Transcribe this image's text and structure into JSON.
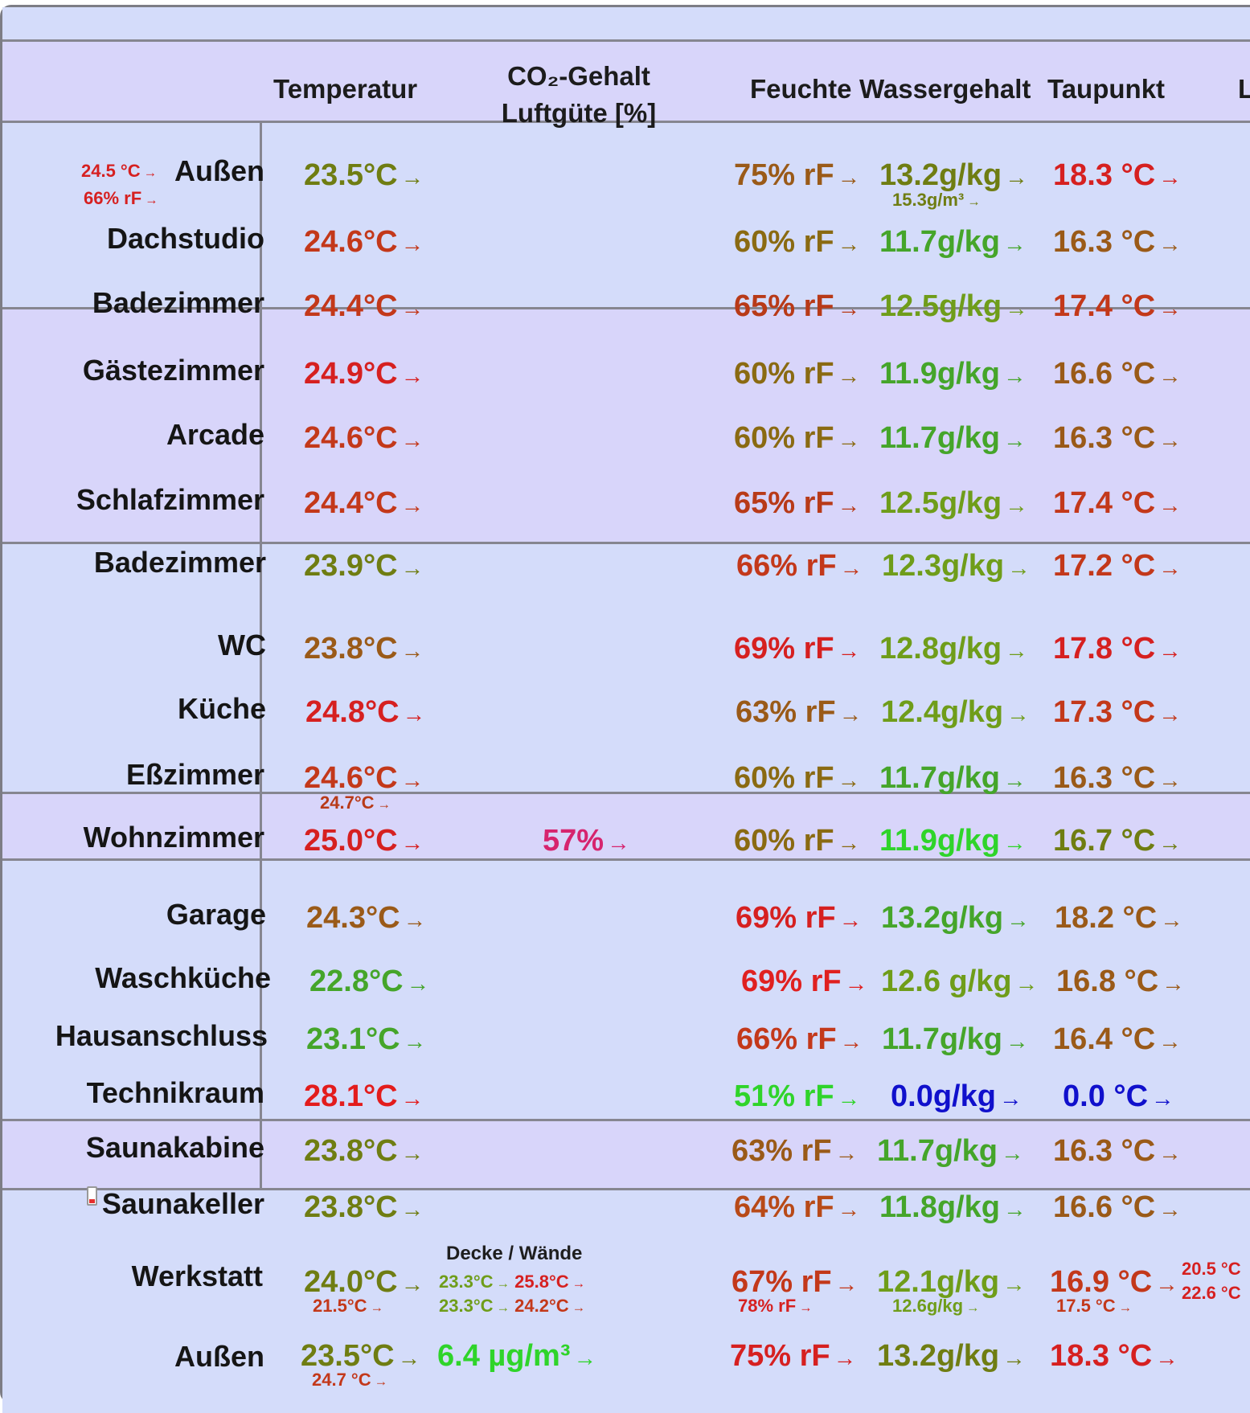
{
  "header": {
    "temperature": "Temperatur",
    "co2_line1": "CO₂-Gehalt",
    "co2_line2": "Luftgüte [%]",
    "humidity": "Feuchte",
    "water_content": "Wassergehalt",
    "dew_point": "Taupunkt",
    "cut_column": "L"
  },
  "rows": [
    {
      "room": "Außen",
      "temp": "23.5°C",
      "hum": "75% rF",
      "water": "13.2g/kg",
      "dew": "18.3 °C",
      "extra_temp": "24.5 °C",
      "extra_hum": "66% rF",
      "water_sub": "15.3g/m³"
    },
    {
      "room": "Dachstudio",
      "temp": "24.6°C",
      "hum": "60% rF",
      "water": "11.7g/kg",
      "dew": "16.3 °C"
    },
    {
      "room": "Badezimmer",
      "temp": "24.4°C",
      "hum": "65% rF",
      "water": "12.5g/kg",
      "dew": "17.4 °C"
    },
    {
      "room": "Gästezimmer",
      "temp": "24.9°C",
      "hum": "60% rF",
      "water": "11.9g/kg",
      "dew": "16.6 °C"
    },
    {
      "room": "Arcade",
      "temp": "24.6°C",
      "hum": "60% rF",
      "water": "11.7g/kg",
      "dew": "16.3 °C"
    },
    {
      "room": "Schlafzimmer",
      "temp": "24.4°C",
      "hum": "65% rF",
      "water": "12.5g/kg",
      "dew": "17.4 °C"
    },
    {
      "room": "Badezimmer",
      "temp": "23.9°C",
      "hum": "66% rF",
      "water": "12.3g/kg",
      "dew": "17.2 °C"
    },
    {
      "room": "WC",
      "temp": "23.8°C",
      "hum": "69% rF",
      "water": "12.8g/kg",
      "dew": "17.8 °C"
    },
    {
      "room": "Küche",
      "temp": "24.8°C",
      "hum": "63% rF",
      "water": "12.4g/kg",
      "dew": "17.3 °C"
    },
    {
      "room": "Eßzimmer",
      "temp": "24.6°C",
      "hum": "60% rF",
      "water": "11.7g/kg",
      "dew": "16.3 °C",
      "temp_sub": "24.7°C"
    },
    {
      "room": "Wohnzimmer",
      "temp": "25.0°C",
      "co2": "57%",
      "hum": "60% rF",
      "water": "11.9g/kg",
      "dew": "16.7 °C"
    },
    {
      "room": "Garage",
      "temp": "24.3°C",
      "hum": "69% rF",
      "water": "13.2g/kg",
      "dew": "18.2 °C"
    },
    {
      "room": "Waschküche",
      "temp": "22.8°C",
      "hum": "69% rF",
      "water": "12.6 g/kg",
      "dew": "16.8 °C"
    },
    {
      "room": "Hausanschluss",
      "temp": "23.1°C",
      "hum": "66% rF",
      "water": "11.7g/kg",
      "dew": "16.4 °C"
    },
    {
      "room": "Technikraum",
      "temp": "28.1°C",
      "hum": "51% rF",
      "water": "0.0g/kg",
      "dew": "0.0 °C"
    },
    {
      "room": "Saunakabine",
      "temp": "23.8°C",
      "hum": "63% rF",
      "water": "11.7g/kg",
      "dew": "16.3 °C"
    },
    {
      "room": "Saunakeller",
      "temp": "23.8°C",
      "hum": "64% rF",
      "water": "11.8g/kg",
      "dew": "16.6 °C"
    },
    {
      "room": "Werkstatt",
      "temp": "24.0°C",
      "hum": "67% rF",
      "water": "12.1g/kg",
      "dew": "16.9 °C",
      "temp_sub": "21.5°C",
      "hum_sub": "78% rF",
      "water_sub": "12.6g/kg",
      "dew_sub": "17.5 °C",
      "walls_title": "Decke / Wände",
      "walls_row1_a": "23.3°C",
      "walls_row1_b": "25.8°C",
      "walls_row2_a": "23.3°C",
      "walls_row2_b": "24.2°C",
      "right_1": "20.5 °C",
      "right_2": "22.6 °C"
    },
    {
      "room": "Außen",
      "temp": "23.5°C",
      "pm": "6.4 µg/m³",
      "hum": "75% rF",
      "water": "13.2g/kg",
      "dew": "18.3 °C",
      "temp_sub": "24.7 °C"
    }
  ],
  "arrow": "→",
  "icons": {
    "battery": "battery-low-icon"
  },
  "colors": {
    "red": "#d62020",
    "orange_red": "#c3381a",
    "brown": "#9a5a18",
    "olive": "#6f7d12",
    "green": "#45a52a",
    "bright_green": "#2fd42a",
    "blue": "#1010cc",
    "magenta": "#d6246e",
    "panel": "#d4dcfa",
    "border": "#868690"
  }
}
